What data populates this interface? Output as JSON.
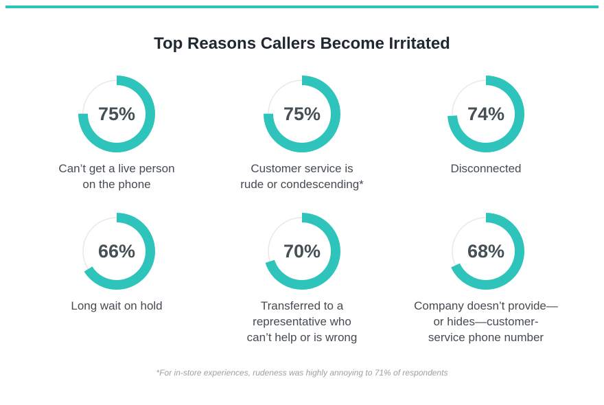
{
  "colors": {
    "accent": "#2ec4bb",
    "track": "#e8e8e8"
  },
  "chart_data": {
    "type": "donut",
    "title": "Top Reasons Callers Become Irritated",
    "unit": "%",
    "items": [
      {
        "label_lines": [
          "Can’t get a live person",
          "on the phone"
        ],
        "value": 75,
        "value_label": "75%"
      },
      {
        "label_lines": [
          "Customer service is",
          "rude or condescending*"
        ],
        "value": 75,
        "value_label": "75%"
      },
      {
        "label_lines": [
          "Disconnected"
        ],
        "value": 74,
        "value_label": "74%"
      },
      {
        "label_lines": [
          "Long wait on hold"
        ],
        "value": 66,
        "value_label": "66%"
      },
      {
        "label_lines": [
          "Transferred to a",
          "representative who",
          "can’t help or is wrong"
        ],
        "value": 70,
        "value_label": "70%"
      },
      {
        "label_lines": [
          "Company doesn’t provide—",
          "or hides—customer-",
          "service phone number"
        ],
        "value": 68,
        "value_label": "68%"
      }
    ],
    "footnote": "*For in-store experiences, rudeness was highly annoying to 71% of respondents"
  }
}
